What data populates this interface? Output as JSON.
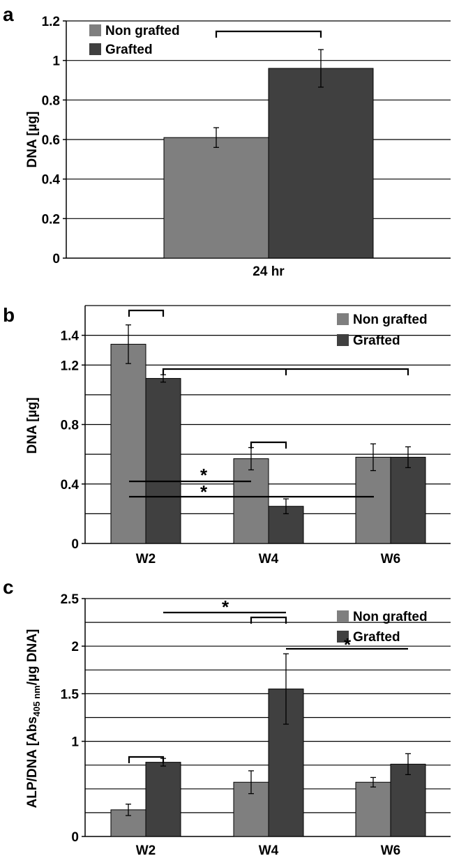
{
  "colors": {
    "non_grafted": "#7f7f7f",
    "grafted": "#404040"
  },
  "chart_data": [
    {
      "panel": "a",
      "type": "bar",
      "ylabel": "DNA [µg]",
      "ylim": [
        0,
        1.2
      ],
      "yticks": [
        "0",
        "0.2",
        "0.4",
        "0.6",
        "0.8",
        "1",
        "1.2"
      ],
      "categories": [
        "24 hr"
      ],
      "series": [
        {
          "name": "Non grafted",
          "values": [
            0.61
          ],
          "errors": [
            0.05
          ]
        },
        {
          "name": "Grafted",
          "values": [
            0.96
          ],
          "errors": [
            0.095
          ]
        }
      ],
      "legend": "top-left",
      "grid": true
    },
    {
      "panel": "b",
      "type": "bar",
      "ylabel": "DNA [µg]",
      "ylim": [
        0,
        1.6
      ],
      "yticks": [
        "0",
        "0.4",
        "0.8",
        "1.2",
        "1.4"
      ],
      "categories": [
        "W2",
        "W4",
        "W6"
      ],
      "series": [
        {
          "name": "Non grafted",
          "values": [
            1.34,
            0.57,
            0.58
          ],
          "errors": [
            0.13,
            0.075,
            0.09
          ]
        },
        {
          "name": "Grafted",
          "values": [
            1.11,
            0.25,
            0.58
          ],
          "errors": [
            0.025,
            0.05,
            0.07
          ]
        }
      ],
      "legend": "top-right",
      "grid": true,
      "annotations": [
        "*",
        "*"
      ]
    },
    {
      "panel": "c",
      "type": "bar",
      "ylabel": "ALP/DNA [Abs405 nm/µg DNA]",
      "ylim": [
        0,
        2.5
      ],
      "yticks": [
        "0",
        "1",
        "1.5",
        "2",
        "2.5"
      ],
      "categories": [
        "W2",
        "W4",
        "W6"
      ],
      "series": [
        {
          "name": "Non grafted",
          "values": [
            0.28,
            0.57,
            0.57
          ],
          "errors": [
            0.06,
            0.12,
            0.05
          ]
        },
        {
          "name": "Grafted",
          "values": [
            0.78,
            1.55,
            0.76
          ],
          "errors": [
            0.04,
            0.37,
            0.11
          ]
        }
      ],
      "legend": "top-right",
      "grid": true,
      "annotations": [
        "*",
        "*"
      ]
    }
  ]
}
